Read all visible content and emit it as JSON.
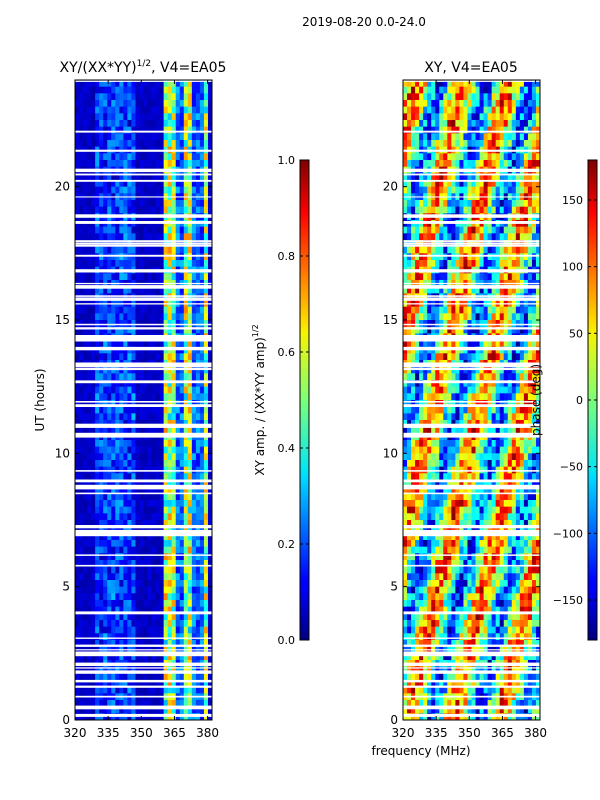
{
  "suptitle": "2019-08-20 0.0-24.0",
  "xlabel": "frequency (MHz)",
  "chart_data": [
    {
      "type": "heatmap",
      "title_main": "XY/(XX*YY)",
      "title_exp": "1/2",
      "title_suffix": ", V4=EA05",
      "xlim": [
        320,
        382
      ],
      "ylim": [
        0,
        24
      ],
      "xticks": [
        320,
        335,
        350,
        365,
        380
      ],
      "yticks": [
        0,
        5,
        10,
        15,
        20
      ],
      "ylabel": "UT (hours)",
      "colorbar": {
        "label_main": "XY amp. / (XX*YY amp)",
        "label_exp": "1/2",
        "range": [
          0.0,
          1.0
        ],
        "ticks": [
          "0.0",
          "0.2",
          "0.4",
          "0.6",
          "0.8",
          "1.0"
        ],
        "colormap": "jet"
      }
    },
    {
      "type": "heatmap",
      "title": "XY, V4=EA05",
      "xlim": [
        320,
        382
      ],
      "ylim": [
        0,
        24
      ],
      "xticks": [
        320,
        335,
        350,
        365,
        380
      ],
      "yticks": [
        0,
        5,
        10,
        15,
        20
      ],
      "colorbar": {
        "label": "phase (deg)",
        "range": [
          -180,
          180
        ],
        "ticks": [
          "150",
          "100",
          "50",
          "0",
          "−50",
          "−100",
          "−150"
        ],
        "colormap": "jet"
      }
    }
  ]
}
